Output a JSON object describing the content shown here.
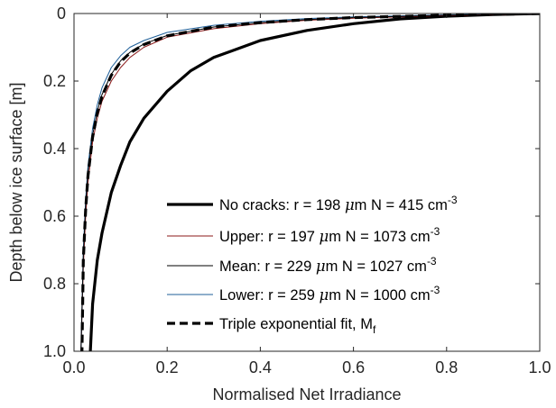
{
  "chart_data": {
    "type": "line",
    "xlabel": "Normalised Net Irradiance",
    "ylabel": "Depth below ice surface [m]",
    "xlim": [
      0,
      1
    ],
    "ylim": [
      0,
      1
    ],
    "y_reversed": true,
    "x_ticks": [
      "0.0",
      "0.2",
      "0.4",
      "0.6",
      "0.8",
      "1.0"
    ],
    "y_ticks": [
      "0",
      "0.2",
      "0.4",
      "0.6",
      "0.8",
      "1.0"
    ],
    "grid": false,
    "legend_position": "lower-right",
    "series": [
      {
        "name": "No cracks: r = 198 μm N = 415 cm-3",
        "legend": {
          "pre": "No cracks: r = 198 ",
          "mu": "μ",
          "mid": "m N = 415 cm",
          "sup": "-3",
          "sub": ""
        },
        "color": "#000000",
        "style": "solid-thick",
        "x": [
          1.0,
          0.9,
          0.8,
          0.7,
          0.6,
          0.5,
          0.4,
          0.3,
          0.25,
          0.2,
          0.15,
          0.12,
          0.1,
          0.08,
          0.06,
          0.05,
          0.04,
          0.035
        ],
        "y": [
          0.0,
          0.003,
          0.008,
          0.016,
          0.03,
          0.05,
          0.08,
          0.13,
          0.17,
          0.23,
          0.31,
          0.38,
          0.45,
          0.53,
          0.65,
          0.73,
          0.86,
          1.0
        ]
      },
      {
        "name": "Upper: r = 197 μm N = 1073 cm-3",
        "legend": {
          "pre": "Upper: r = 197 ",
          "mu": "μ",
          "mid": "m N = 1073 cm",
          "sup": "-3",
          "sub": ""
        },
        "color": "#8b1a1a",
        "style": "solid",
        "x": [
          1.0,
          0.8,
          0.6,
          0.5,
          0.4,
          0.3,
          0.2,
          0.15,
          0.12,
          0.1,
          0.08,
          0.06,
          0.05,
          0.04,
          0.03,
          0.025,
          0.02,
          0.015
        ],
        "y": [
          0.0,
          0.006,
          0.014,
          0.02,
          0.03,
          0.045,
          0.07,
          0.1,
          0.13,
          0.16,
          0.2,
          0.26,
          0.31,
          0.38,
          0.5,
          0.6,
          0.75,
          1.0
        ]
      },
      {
        "name": "Mean: r = 229 μm N = 1027 cm-3",
        "legend": {
          "pre": "Mean: r = 229 ",
          "mu": "μ",
          "mid": "m N = 1027 cm",
          "sup": "-3",
          "sub": ""
        },
        "color": "#000000",
        "style": "solid-thin",
        "x": [
          1.0,
          0.8,
          0.6,
          0.5,
          0.4,
          0.3,
          0.2,
          0.15,
          0.12,
          0.1,
          0.08,
          0.06,
          0.05,
          0.04,
          0.03,
          0.025,
          0.02,
          0.015
        ],
        "y": [
          0.0,
          0.005,
          0.012,
          0.018,
          0.027,
          0.04,
          0.065,
          0.09,
          0.115,
          0.14,
          0.18,
          0.24,
          0.29,
          0.36,
          0.47,
          0.57,
          0.72,
          1.0
        ]
      },
      {
        "name": "Lower: r = 259 μm N = 1000 cm-3",
        "legend": {
          "pre": "Lower: r = 259 ",
          "mu": "μ",
          "mid": "m N = 1000 cm",
          "sup": "-3",
          "sub": ""
        },
        "color": "#1f5f99",
        "style": "solid",
        "x": [
          1.0,
          0.8,
          0.6,
          0.5,
          0.4,
          0.3,
          0.2,
          0.15,
          0.12,
          0.1,
          0.08,
          0.06,
          0.05,
          0.04,
          0.03,
          0.025,
          0.02,
          0.015
        ],
        "y": [
          0.0,
          0.004,
          0.01,
          0.015,
          0.023,
          0.035,
          0.056,
          0.08,
          0.1,
          0.125,
          0.16,
          0.22,
          0.27,
          0.34,
          0.45,
          0.55,
          0.7,
          1.0
        ]
      },
      {
        "name": "Triple exponential fit, Mf",
        "legend": {
          "pre": "Triple exponential fit, M",
          "mu": "",
          "mid": "",
          "sup": "",
          "sub": "f"
        },
        "color": "#000000",
        "style": "dashed",
        "x": [
          1.0,
          0.8,
          0.6,
          0.5,
          0.4,
          0.3,
          0.2,
          0.15,
          0.12,
          0.1,
          0.08,
          0.06,
          0.05,
          0.04,
          0.03,
          0.025,
          0.02,
          0.017
        ],
        "y": [
          0.0,
          0.005,
          0.012,
          0.018,
          0.027,
          0.04,
          0.066,
          0.092,
          0.117,
          0.143,
          0.183,
          0.245,
          0.295,
          0.365,
          0.48,
          0.58,
          0.73,
          1.0
        ]
      }
    ]
  }
}
